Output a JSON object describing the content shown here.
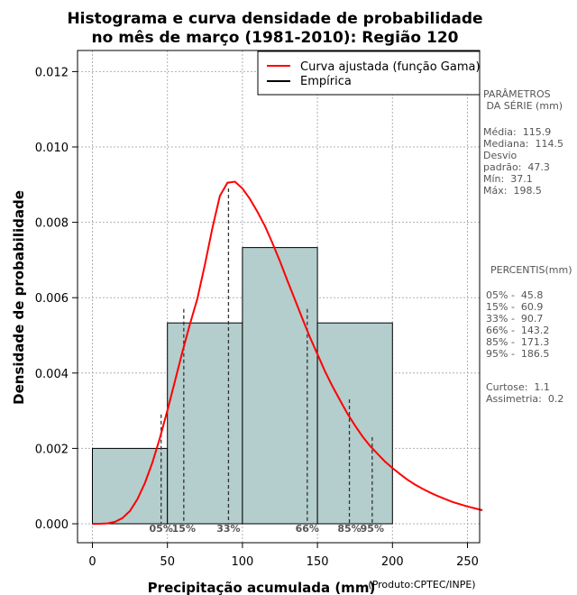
{
  "chart_data": {
    "type": "bar",
    "title_line1": "Histograma e curva densidade de probabilidade",
    "title_line2": "no mês de março (1981-2010): Região 120",
    "xlabel": "Precipitação acumulada (mm)",
    "ylabel": "Densidade de probabilidade",
    "credit": "(Produto:CPTEC/INPE)",
    "xlim": [
      -10,
      260
    ],
    "ylim": [
      0,
      0.0125
    ],
    "x_ticks": [
      0,
      50,
      100,
      150,
      200,
      250
    ],
    "y_ticks": [
      0.0,
      0.002,
      0.004,
      0.006,
      0.008,
      0.01,
      0.012
    ],
    "y_tick_labels": [
      "0.000",
      "0.002",
      "0.004",
      "0.006",
      "0.008",
      "0.010",
      "0.012"
    ],
    "grid": true,
    "bins": [
      {
        "x0": 0,
        "x1": 50,
        "density": 0.002
      },
      {
        "x0": 50,
        "x1": 100,
        "density": 0.00533
      },
      {
        "x0": 100,
        "x1": 150,
        "density": 0.00733
      },
      {
        "x0": 150,
        "x1": 200,
        "density": 0.00533
      }
    ],
    "gamma_curve": {
      "name": "Curva ajustada (função Gama)",
      "color": "#ff0000",
      "x": [
        0,
        5,
        10,
        15,
        20,
        25,
        30,
        35,
        40,
        45,
        50,
        55,
        60,
        65,
        70,
        75,
        80,
        85,
        90,
        95,
        100,
        105,
        110,
        115,
        120,
        125,
        130,
        135,
        140,
        145,
        150,
        155,
        160,
        165,
        170,
        175,
        180,
        185,
        190,
        195,
        200,
        205,
        210,
        215,
        220,
        225,
        230,
        235,
        240,
        245,
        250,
        255,
        260
      ],
      "y": [
        0,
        3e-07,
        1e-05,
        5e-05,
        0.00015,
        0.00034,
        0.00065,
        0.00108,
        0.00163,
        0.00228,
        0.00301,
        0.00378,
        0.00456,
        0.0053,
        0.00598,
        0.00688,
        0.00785,
        0.0087,
        0.00905,
        0.00908,
        0.0089,
        0.00862,
        0.00828,
        0.0079,
        0.00745,
        0.00697,
        0.00645,
        0.00595,
        0.00544,
        0.00495,
        0.0045,
        0.00405,
        0.00365,
        0.00328,
        0.00292,
        0.00261,
        0.00232,
        0.00207,
        0.00186,
        0.00165,
        0.00148,
        0.00132,
        0.00117,
        0.00104,
        0.00093,
        0.00083,
        0.00074,
        0.00066,
        0.00058,
        0.00052,
        0.00046,
        0.00041,
        0.00036
      ]
    },
    "empirica_label": "Empírica",
    "percentiles": [
      {
        "label": "05%",
        "x": 45.8,
        "y": 0.0029
      },
      {
        "label": "15%",
        "x": 60.9,
        "y": 0.0057
      },
      {
        "label": "33%",
        "x": 90.7,
        "y": 0.0089
      },
      {
        "label": "66%",
        "x": 143.2,
        "y": 0.0057
      },
      {
        "label": "85%",
        "x": 171.3,
        "y": 0.0033
      },
      {
        "label": "95%",
        "x": 186.5,
        "y": 0.0023
      }
    ],
    "colors": {
      "bar_fill": "#b4cdcd",
      "curve": "#ff0000",
      "grid": "#b0b0b0",
      "text_gray": "#555555"
    }
  },
  "sidebar": {
    "params_title": "PARÂMETROS\n DA SÉRIE (mm)",
    "params_body": "Média:  115.9\nMediana:  114.5\nDesvio\npadrão:  47.3\nMín:  37.1\nMáx:  198.5",
    "perc_title": "PERCENTIS(mm)",
    "perc_body": "05% -  45.8\n15% -  60.9\n33% -  90.7\n66% -  143.2\n85% -  171.3\n95% -  186.5",
    "stats_body": "Curtose:  1.1\nAssimetria:  0.2"
  }
}
